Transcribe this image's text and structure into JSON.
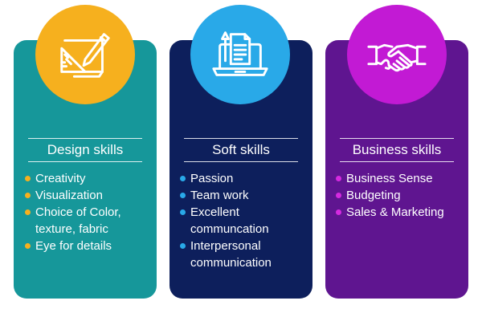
{
  "colors": {
    "design_card": "#16979a",
    "design_circle": "#f6b01e",
    "soft_card": "#0d1f5c",
    "soft_circle": "#29a9e8",
    "business_card": "#5f1590",
    "business_circle": "#c21ad4",
    "icon_stroke": "#ffffff"
  },
  "categories": [
    {
      "title": "Design skills",
      "icon": "drawing-tools-icon",
      "bullet_color": "#f6b01e",
      "items": [
        "Creativity",
        "Visualization",
        "Choice of Color,",
        "texture, fabric",
        "Eye for details"
      ],
      "bullets": [
        true,
        true,
        true,
        false,
        true
      ]
    },
    {
      "title": "Soft skills",
      "icon": "laptop-document-icon",
      "bullet_color": "#29a9e8",
      "items": [
        "Passion",
        "Team work",
        "Excellent",
        "communcation",
        "Interpersonal",
        "communication"
      ],
      "bullets": [
        true,
        true,
        true,
        false,
        true,
        false
      ]
    },
    {
      "title": "Business skills",
      "icon": "handshake-icon",
      "bullet_color": "#d52ae0",
      "items": [
        "Business Sense",
        "Budgeting",
        "Sales & Marketing"
      ],
      "bullets": [
        true,
        true,
        true
      ]
    }
  ]
}
